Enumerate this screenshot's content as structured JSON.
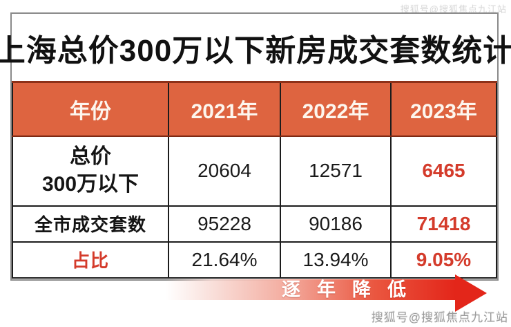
{
  "title": "上海总价300万以下新房成交套数统计",
  "table": {
    "header": [
      "年份",
      "2021年",
      "2022年",
      "2023年"
    ],
    "rows": [
      {
        "label_line1": "总价",
        "label_line2": "300万以下",
        "values": [
          "20604",
          "12571",
          "6465"
        ]
      },
      {
        "label": "全市成交套数",
        "values": [
          "95228",
          "90186",
          "71418"
        ]
      },
      {
        "label": "占比",
        "values": [
          "21.64%",
          "13.94%",
          "9.05%"
        ]
      }
    ]
  },
  "arrow": {
    "label": "逐年降低"
  },
  "watermarks": {
    "top_right": "搜狐号@搜狐焦点九江站",
    "bottom_right": "搜狐号@搜狐焦点九江站"
  },
  "colors": {
    "header_bg": "#DE6440",
    "header_text": "#FDF6EE",
    "accent_red": "#D43B2B",
    "arrow_red": "#E3261A",
    "grid": "#1C1C1C",
    "outer_border": "#8A8A8A",
    "watermark_gray": "#9B9B9B",
    "title_color": "#111111"
  },
  "chart_data": {
    "type": "table",
    "title": "上海总价300万以下新房成交套数统计",
    "columns": [
      "年份",
      "2021年",
      "2022年",
      "2023年"
    ],
    "rows": [
      {
        "label": "总价300万以下",
        "values": [
          20604,
          12571,
          6465
        ]
      },
      {
        "label": "全市成交套数",
        "values": [
          95228,
          90186,
          71418
        ]
      },
      {
        "label": "占比",
        "values": [
          "21.64%",
          "13.94%",
          "9.05%"
        ]
      }
    ],
    "annotation": "逐年降低 (declining year by year, arrow pointing right)",
    "highlight": "2023年 column values shown in red"
  }
}
